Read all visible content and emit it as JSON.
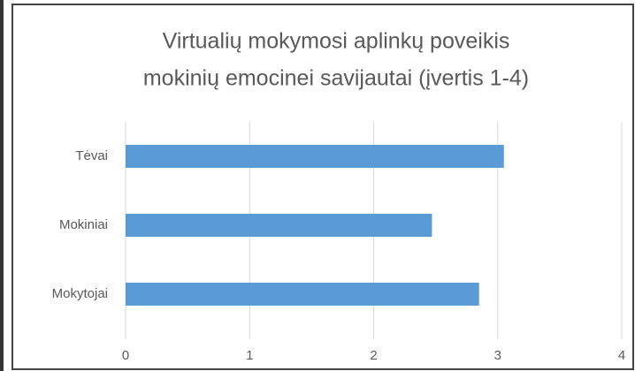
{
  "chart_data": {
    "type": "hbar",
    "title": [
      "Virtualių mokymosi aplinkų poveikis",
      "mokinių emocinei savijautai (įvertis 1-4)"
    ],
    "categories": [
      "Tėvai",
      "Mokiniai",
      "Mokytojai"
    ],
    "values": [
      3.05,
      2.47,
      2.85
    ],
    "color": "#5b9bd5",
    "xlim": [
      0,
      4
    ],
    "xticks": [
      0,
      1,
      2,
      3,
      4
    ],
    "grid": true
  }
}
